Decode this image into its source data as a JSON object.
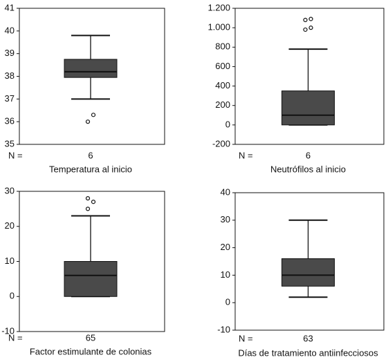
{
  "chart_data": [
    {
      "type": "box",
      "n_label": "N =",
      "n": 6,
      "xlabel": "Temperatura al inicio",
      "ylim": [
        35,
        41
      ],
      "yticks": [
        35,
        36,
        37,
        38,
        39,
        40,
        41
      ],
      "box": {
        "min": 37.0,
        "q1": 37.95,
        "median": 38.2,
        "q3": 38.75,
        "max": 39.8
      },
      "outliers": [
        36.0,
        36.3
      ]
    },
    {
      "type": "box",
      "n_label": "N =",
      "n": 6,
      "xlabel": "Neutrófilos al inicio",
      "ylim": [
        -200,
        1200
      ],
      "yticks": [
        -200,
        0,
        200,
        400,
        600,
        800,
        {
          "value": 1000,
          "label": "1.000"
        },
        {
          "value": 1200,
          "label": "1.200"
        }
      ],
      "box": {
        "min": 0,
        "q1": 0,
        "median": 100,
        "q3": 350,
        "max": 780
      },
      "outliers": [
        980,
        1000,
        1080,
        1090
      ]
    },
    {
      "type": "box",
      "n_label": "N =",
      "n": 65,
      "xlabel": "Factor estimulante de colonias",
      "ylim": [
        -10,
        30
      ],
      "yticks": [
        -10,
        0,
        10,
        20,
        30
      ],
      "box": {
        "min": 0,
        "q1": 0,
        "median": 6,
        "q3": 10,
        "max": 23
      },
      "outliers": [
        25,
        27,
        28
      ]
    },
    {
      "type": "box",
      "n_label": "N =",
      "n": 63,
      "xlabel": "Días de tratamiento antiinfecciosos",
      "ylim": [
        -10,
        40
      ],
      "yticks": [
        -10,
        0,
        10,
        20,
        30,
        40
      ],
      "box": {
        "min": 2,
        "q1": 6,
        "median": 10,
        "q3": 16,
        "max": 30
      },
      "outliers": []
    }
  ]
}
